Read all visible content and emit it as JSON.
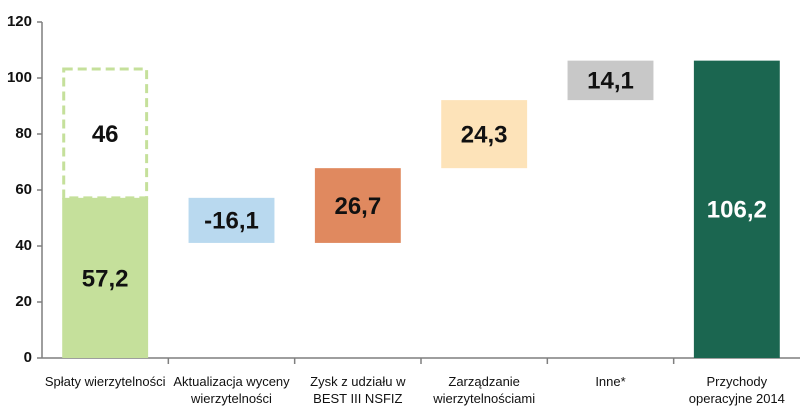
{
  "chart_data": {
    "type": "waterfall",
    "categories": [
      "Spłaty wierzytelności",
      "Aktualizacja wyceny wierzytelności",
      "Zysk z udziału w BEST III NSFIZ",
      "Zarządzanie wierzytelnościami",
      "Inne*",
      "Przychody operacyjne 2014"
    ],
    "series": [
      {
        "values": [
          57.2,
          -16.1,
          26.7,
          24.3,
          14.1,
          106.2
        ],
        "value_labels": [
          "57,2",
          "-16,1",
          "26,7",
          "24,3",
          "14,1",
          "106,2"
        ],
        "measure": [
          "relative",
          "relative",
          "relative",
          "relative",
          "relative",
          "total"
        ],
        "colors": [
          "#c5e09b",
          "#b9d9ef",
          "#e0895f",
          "#fde3b9",
          "#c8c8c8",
          "#1b6650"
        ]
      },
      {
        "values": [
          46,
          null,
          null,
          null,
          null,
          null
        ],
        "value_labels": [
          "46",
          null,
          null,
          null,
          null,
          null
        ],
        "stacked": true,
        "dashed": true,
        "color": "#c5e09b"
      }
    ],
    "ylim": [
      0,
      120
    ],
    "yticks": [
      0,
      20,
      40,
      60,
      80,
      100,
      120
    ],
    "grid": false
  }
}
